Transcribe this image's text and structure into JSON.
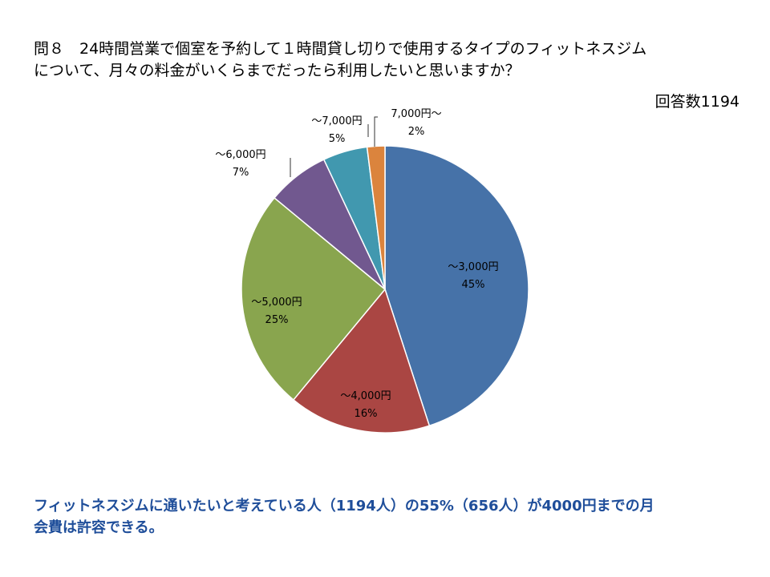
{
  "question": {
    "line1": "問８　24時間営業で個室を予約して１時間貸し切りで使用するタイプのフィットネスジム",
    "line2": "について、月々の料金がいくらまでだったら利用したいと思いますか？"
  },
  "responses_label": "回答数1194",
  "conclusion": {
    "line1": "フィットネスジムに通いたいと考えている人（1194人）の55%（656人）が4000円までの月",
    "line2": "会費は許容できる。"
  },
  "chart_data": {
    "type": "pie",
    "title": "",
    "start": "top",
    "direction": "clockwise",
    "slices": [
      {
        "label": "～3,000円",
        "percent_label": "45%",
        "value": 45,
        "color": "#4672a8"
      },
      {
        "label": "～4,000円",
        "percent_label": "16%",
        "value": 16,
        "color": "#aa4643"
      },
      {
        "label": "～5,000円",
        "percent_label": "25%",
        "value": 25,
        "color": "#89a54e"
      },
      {
        "label": "～6,000円",
        "percent_label": "7%",
        "value": 7,
        "color": "#71588f"
      },
      {
        "label": "～7,000円",
        "percent_label": "5%",
        "value": 5,
        "color": "#4198af"
      },
      {
        "label": "7,000円～",
        "percent_label": "2%",
        "value": 2,
        "color": "#db843d"
      }
    ]
  }
}
